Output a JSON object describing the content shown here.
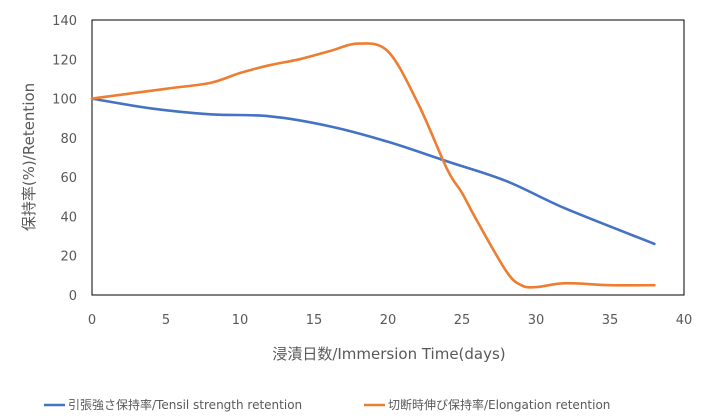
{
  "chart_data": {
    "type": "line",
    "title": "",
    "xlabel": "浸漬日数/Immersion Time(days)",
    "ylabel": "保持率(%)/Retention",
    "xlim": [
      0,
      40
    ],
    "ylim": [
      0,
      140
    ],
    "xticks": [
      0,
      5,
      10,
      15,
      20,
      25,
      30,
      35,
      40
    ],
    "yticks": [
      0,
      20,
      40,
      60,
      80,
      100,
      120,
      140
    ],
    "grid": false,
    "legend_position": "bottom",
    "series": [
      {
        "name": "引張強さ保持率/Tensil strength retention",
        "color": "#4472C4",
        "x": [
          0,
          4,
          8,
          12,
          16,
          20,
          24,
          28,
          32,
          38
        ],
        "y": [
          100,
          95,
          92,
          91,
          86,
          78,
          68,
          58,
          44,
          26
        ]
      },
      {
        "name": "切断時伸び保持率/Elongation retention",
        "color": "#ED7D31",
        "x": [
          0,
          5,
          8,
          10,
          12,
          14,
          16,
          18,
          20,
          22,
          24,
          25,
          26,
          28,
          29,
          30,
          32,
          35,
          38
        ],
        "y": [
          100,
          105,
          108,
          113,
          117,
          120,
          124,
          128,
          124,
          98,
          64,
          52,
          38,
          12,
          5,
          4,
          6,
          5,
          5
        ]
      }
    ]
  }
}
